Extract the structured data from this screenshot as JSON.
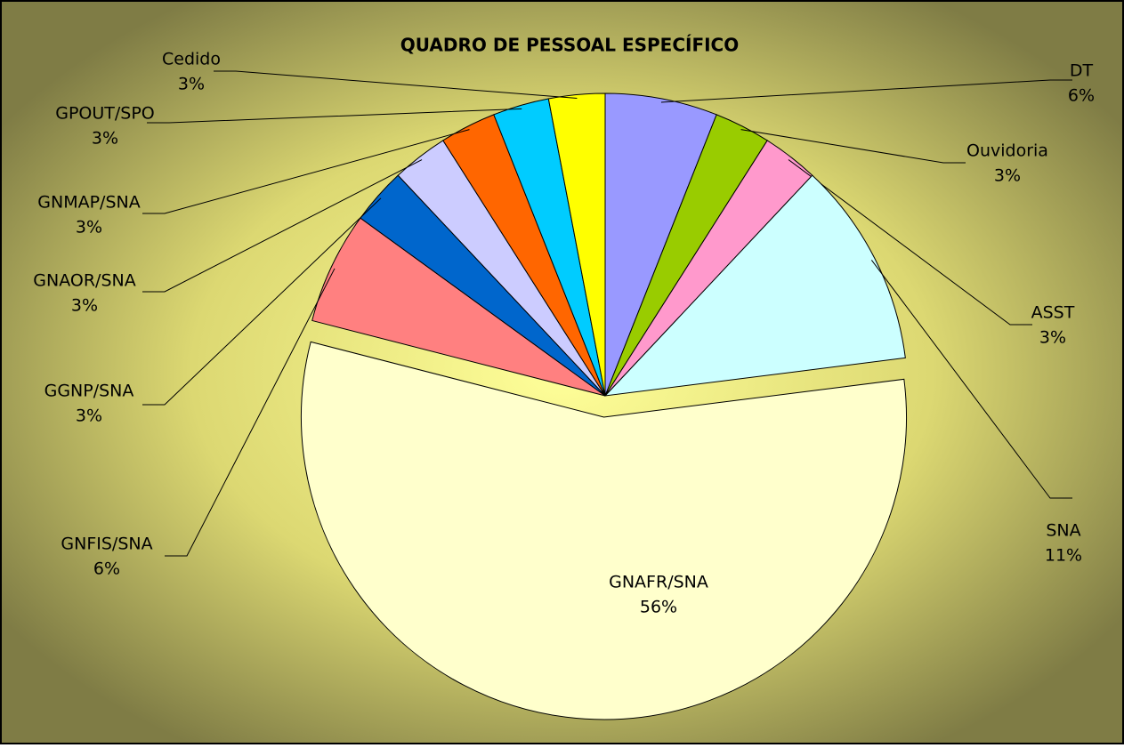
{
  "chart_data": {
    "type": "pie",
    "title": "QUADRO DE PESSOAL ESPECÍFICO",
    "categories": [
      "DT",
      "Ouvidoria",
      "ASST",
      "SNA",
      "GNAFR/SNA",
      "GNFIS/SNA",
      "GGNP/SNA",
      "GNAOR/SNA",
      "GNMAP/SNA",
      "GPOUT/SPO",
      "Cedido"
    ],
    "values": [
      6,
      3,
      3,
      11,
      56,
      6,
      3,
      3,
      3,
      3,
      3
    ],
    "value_labels": [
      "6%",
      "3%",
      "3%",
      "11%",
      "56%",
      "6%",
      "3%",
      "3%",
      "3%",
      "3%",
      "3%"
    ],
    "colors": [
      "#9999ff",
      "#99cc00",
      "#ff99cc",
      "#ccffff",
      "#ffffcc",
      "#ff8080",
      "#0066cc",
      "#ccccff",
      "#ff6600",
      "#00ccff",
      "#ffff00"
    ]
  }
}
